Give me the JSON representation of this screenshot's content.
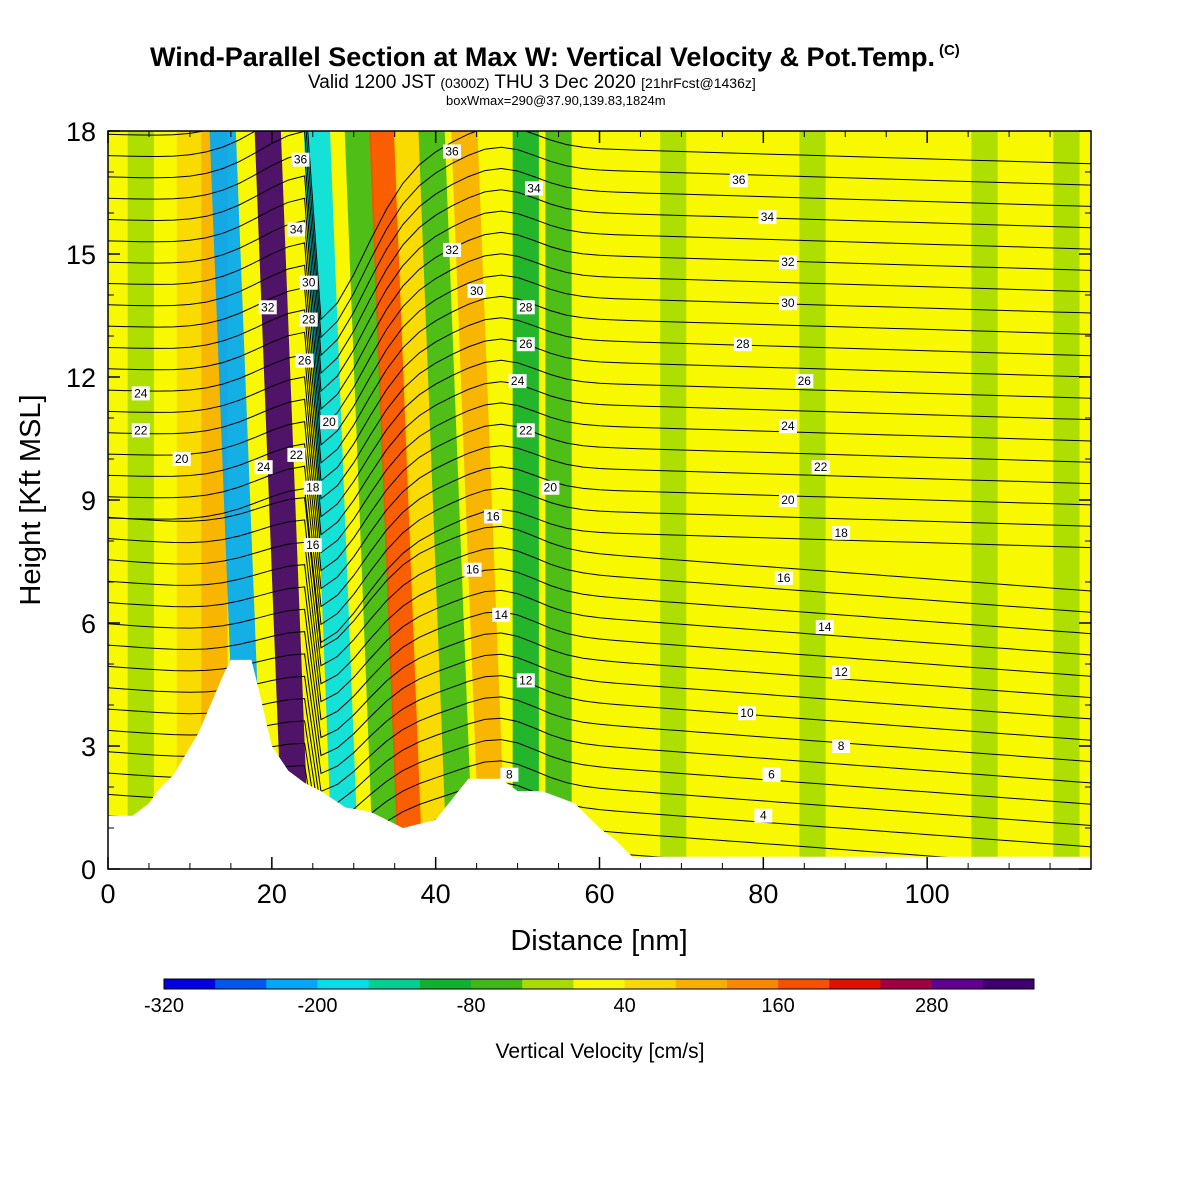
{
  "header": {
    "title_main": "Wind-Parallel Section at Max W: Vertical Velocity & Pot.Temp.",
    "title_copyright": "(C)",
    "valid_a": "Valid 1200 JST",
    "valid_b": "(0300Z)",
    "valid_c": "THU 3 Dec 2020",
    "valid_d": "[21hrFcst@1436z]",
    "box_info": "boxWmax=290@37.90,139.83,1824m"
  },
  "chart_data": {
    "type": "heatmap",
    "xlabel": "Distance [nm]",
    "ylabel": "Height [Kft MSL]",
    "xlim": [
      0,
      120
    ],
    "ylim": [
      0,
      18
    ],
    "x_ticks": [
      "0",
      "20",
      "40",
      "60",
      "80",
      "100"
    ],
    "y_ticks": [
      "0",
      "3",
      "6",
      "9",
      "12",
      "15",
      "18"
    ],
    "colorbar": {
      "label": "Vertical Velocity [cm/s]",
      "ticks": [
        "-320",
        "-200",
        "-80",
        "40",
        "160",
        "280"
      ],
      "levels": [
        -320,
        -280,
        -240,
        -200,
        -160,
        -120,
        -80,
        -40,
        0,
        40,
        80,
        120,
        160,
        200,
        240,
        280,
        320,
        360
      ],
      "colors": [
        "#0000e0",
        "#0058f0",
        "#00a8f8",
        "#00e0e8",
        "#00d090",
        "#10b030",
        "#40b818",
        "#a8dc00",
        "#f8f800",
        "#f8d800",
        "#f8b000",
        "#f88800",
        "#f85000",
        "#e01000",
        "#a00040",
        "#600090",
        "#400070"
      ]
    },
    "vertical_velocity_bands": [
      {
        "x_center": 4,
        "value": -40
      },
      {
        "x_center": 10,
        "value": 40
      },
      {
        "x_center": 13,
        "value": 80
      },
      {
        "x_center": 17.5,
        "value": -240
      },
      {
        "x_center": 23,
        "value": 320
      },
      {
        "x_center": 29,
        "value": -200
      },
      {
        "x_center": 34,
        "value": -80
      },
      {
        "x_center": 37,
        "value": 160
      },
      {
        "x_center": 40,
        "value": 40
      },
      {
        "x_center": 43,
        "value": -80
      },
      {
        "x_center": 47,
        "value": 80
      },
      {
        "x_center": 51,
        "value": -120
      },
      {
        "x_center": 55,
        "value": -80
      },
      {
        "x_center": 69,
        "value": -40
      },
      {
        "x_center": 86,
        "value": -40
      },
      {
        "x_center": 107,
        "value": -40
      },
      {
        "x_center": 117,
        "value": -40
      }
    ],
    "terrain": [
      {
        "x": 0,
        "h": 1.3
      },
      {
        "x": 3,
        "h": 1.3
      },
      {
        "x": 5,
        "h": 1.6
      },
      {
        "x": 6,
        "h": 1.9
      },
      {
        "x": 8,
        "h": 2.3
      },
      {
        "x": 9.5,
        "h": 2.8
      },
      {
        "x": 11,
        "h": 3.3
      },
      {
        "x": 12.5,
        "h": 4.0
      },
      {
        "x": 14,
        "h": 4.7
      },
      {
        "x": 15,
        "h": 5.1
      },
      {
        "x": 17.5,
        "h": 5.1
      },
      {
        "x": 18.5,
        "h": 4.3
      },
      {
        "x": 20,
        "h": 3.0
      },
      {
        "x": 22,
        "h": 2.4
      },
      {
        "x": 24,
        "h": 2.1
      },
      {
        "x": 26,
        "h": 1.9
      },
      {
        "x": 29,
        "h": 1.5
      },
      {
        "x": 32,
        "h": 1.4
      },
      {
        "x": 36,
        "h": 1.0
      },
      {
        "x": 40,
        "h": 1.2
      },
      {
        "x": 42,
        "h": 1.7
      },
      {
        "x": 44,
        "h": 2.2
      },
      {
        "x": 48,
        "h": 2.2
      },
      {
        "x": 50,
        "h": 1.9
      },
      {
        "x": 53,
        "h": 1.9
      },
      {
        "x": 57,
        "h": 1.6
      },
      {
        "x": 60,
        "h": 1.0
      },
      {
        "x": 62,
        "h": 0.7
      },
      {
        "x": 64,
        "h": 0.3
      },
      {
        "x": 120,
        "h": 0.3
      }
    ],
    "theta_label_series_name": "Pot.Temp.",
    "theta_contour_labels": [
      {
        "text": "36",
        "x": 23.5,
        "y": 17.3
      },
      {
        "text": "36",
        "x": 42,
        "y": 17.5
      },
      {
        "text": "34",
        "x": 52,
        "y": 16.6
      },
      {
        "text": "36",
        "x": 77,
        "y": 16.8
      },
      {
        "text": "34",
        "x": 23,
        "y": 15.6
      },
      {
        "text": "32",
        "x": 42,
        "y": 15.1
      },
      {
        "text": "34",
        "x": 80.5,
        "y": 15.9
      },
      {
        "text": "30",
        "x": 24.5,
        "y": 14.3
      },
      {
        "text": "32",
        "x": 83,
        "y": 14.8
      },
      {
        "text": "32",
        "x": 19.5,
        "y": 13.7
      },
      {
        "text": "30",
        "x": 45,
        "y": 14.1
      },
      {
        "text": "28",
        "x": 24.5,
        "y": 13.4
      },
      {
        "text": "28",
        "x": 51,
        "y": 13.7
      },
      {
        "text": "30",
        "x": 83,
        "y": 13.8
      },
      {
        "text": "26",
        "x": 24,
        "y": 12.4
      },
      {
        "text": "26",
        "x": 51,
        "y": 12.8
      },
      {
        "text": "28",
        "x": 77.5,
        "y": 12.8
      },
      {
        "text": "24",
        "x": 4,
        "y": 11.6
      },
      {
        "text": "24",
        "x": 50,
        "y": 11.9
      },
      {
        "text": "26",
        "x": 85,
        "y": 11.9
      },
      {
        "text": "20",
        "x": 27,
        "y": 10.9
      },
      {
        "text": "22",
        "x": 4,
        "y": 10.7
      },
      {
        "text": "22",
        "x": 51,
        "y": 10.7
      },
      {
        "text": "24",
        "x": 83,
        "y": 10.8
      },
      {
        "text": "20",
        "x": 9,
        "y": 10.0
      },
      {
        "text": "22",
        "x": 23,
        "y": 10.1
      },
      {
        "text": "24",
        "x": 19,
        "y": 9.8
      },
      {
        "text": "22",
        "x": 87,
        "y": 9.8
      },
      {
        "text": "18",
        "x": 25,
        "y": 9.3
      },
      {
        "text": "20",
        "x": 54,
        "y": 9.3
      },
      {
        "text": "20",
        "x": 83,
        "y": 9.0
      },
      {
        "text": "16",
        "x": 47,
        "y": 8.6
      },
      {
        "text": "18",
        "x": 89.5,
        "y": 8.2
      },
      {
        "text": "16",
        "x": 25,
        "y": 7.9
      },
      {
        "text": "16",
        "x": 44.5,
        "y": 7.3
      },
      {
        "text": "16",
        "x": 82.5,
        "y": 7.1
      },
      {
        "text": "14",
        "x": 48,
        "y": 6.2
      },
      {
        "text": "14",
        "x": 87.5,
        "y": 5.9
      },
      {
        "text": "12",
        "x": 51,
        "y": 4.6
      },
      {
        "text": "12",
        "x": 89.5,
        "y": 4.8
      },
      {
        "text": "10",
        "x": 78,
        "y": 3.8
      },
      {
        "text": "8",
        "x": 89.5,
        "y": 3.0
      },
      {
        "text": "8",
        "x": 49,
        "y": 2.3
      },
      {
        "text": "6",
        "x": 81,
        "y": 2.3
      },
      {
        "text": "4",
        "x": 80,
        "y": 1.3
      }
    ]
  }
}
